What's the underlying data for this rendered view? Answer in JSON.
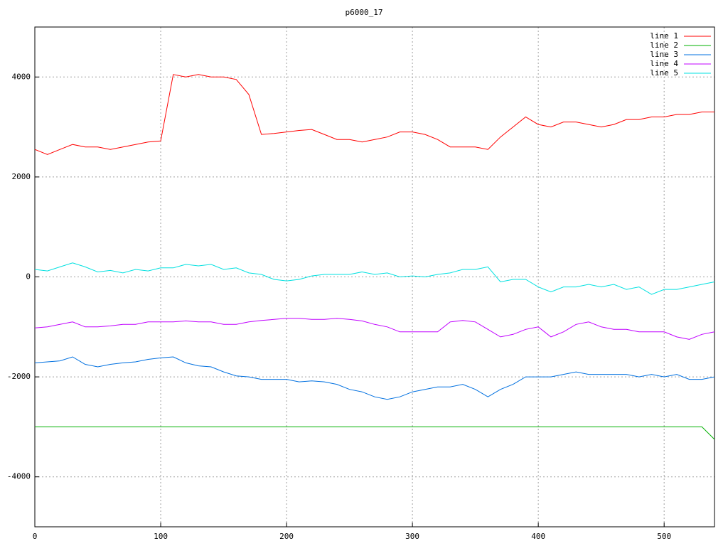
{
  "chart_data": {
    "type": "line",
    "title": "p6000_17",
    "x": [
      0,
      10,
      20,
      30,
      40,
      50,
      60,
      70,
      80,
      90,
      100,
      110,
      120,
      130,
      140,
      150,
      160,
      170,
      180,
      190,
      200,
      210,
      220,
      230,
      240,
      250,
      260,
      270,
      280,
      290,
      300,
      310,
      320,
      330,
      340,
      350,
      360,
      370,
      380,
      390,
      400,
      410,
      420,
      430,
      440,
      450,
      460,
      470,
      480,
      490,
      500,
      510,
      520,
      530,
      540
    ],
    "series": [
      {
        "name": "line 1",
        "color": "#ff0000",
        "values": [
          2550,
          2450,
          2550,
          2650,
          2600,
          2600,
          2550,
          2600,
          2650,
          2700,
          2720,
          4050,
          4000,
          4050,
          4000,
          4000,
          3950,
          3650,
          2850,
          2870,
          2900,
          2930,
          2950,
          2850,
          2750,
          2750,
          2700,
          2750,
          2800,
          2900,
          2900,
          2850,
          2750,
          2600,
          2600,
          2600,
          2550,
          2800,
          3000,
          3200,
          3050,
          3000,
          3100,
          3100,
          3050,
          3000,
          3050,
          3150,
          3150,
          3200,
          3200,
          3250,
          3250,
          3300,
          3300
        ]
      },
      {
        "name": "line 2",
        "color": "#00b000",
        "values": [
          -3000,
          -3000,
          -3000,
          -3000,
          -3000,
          -3000,
          -3000,
          -3000,
          -3000,
          -3000,
          -3000,
          -3000,
          -3000,
          -3000,
          -3000,
          -3000,
          -3000,
          -3000,
          -3000,
          -3000,
          -3000,
          -3000,
          -3000,
          -3000,
          -3000,
          -3000,
          -3000,
          -3000,
          -3000,
          -3000,
          -3000,
          -3000,
          -3000,
          -3000,
          -3000,
          -3000,
          -3000,
          -3000,
          -3000,
          -3000,
          -3000,
          -3000,
          -3000,
          -3000,
          -3000,
          -3000,
          -3000,
          -3000,
          -3000,
          -3000,
          -3000,
          -3000,
          -3000,
          -3000,
          -3250
        ]
      },
      {
        "name": "line 3",
        "color": "#0070e0",
        "values": [
          -1720,
          -1700,
          -1680,
          -1600,
          -1750,
          -1800,
          -1750,
          -1720,
          -1700,
          -1650,
          -1620,
          -1600,
          -1720,
          -1780,
          -1800,
          -1900,
          -1980,
          -2000,
          -2050,
          -2050,
          -2050,
          -2100,
          -2080,
          -2100,
          -2150,
          -2250,
          -2300,
          -2400,
          -2450,
          -2400,
          -2300,
          -2250,
          -2200,
          -2200,
          -2150,
          -2250,
          -2400,
          -2250,
          -2150,
          -2000,
          -2000,
          -2000,
          -1950,
          -1900,
          -1950,
          -1950,
          -1950,
          -1950,
          -2000,
          -1950,
          -2000,
          -1950,
          -2050,
          -2050,
          -2000
        ]
      },
      {
        "name": "line 4",
        "color": "#c000ff",
        "values": [
          -1020,
          -1000,
          -950,
          -900,
          -1000,
          -1000,
          -980,
          -950,
          -950,
          -900,
          -900,
          -900,
          -880,
          -900,
          -900,
          -950,
          -950,
          -900,
          -870,
          -850,
          -830,
          -830,
          -850,
          -850,
          -830,
          -850,
          -880,
          -950,
          -1000,
          -1100,
          -1100,
          -1100,
          -1100,
          -900,
          -870,
          -900,
          -1050,
          -1200,
          -1150,
          -1050,
          -1000,
          -1200,
          -1100,
          -950,
          -900,
          -1000,
          -1050,
          -1050,
          -1100,
          -1100,
          -1100,
          -1200,
          -1250,
          -1150,
          -1100
        ]
      },
      {
        "name": "line 5",
        "color": "#00e0e0",
        "values": [
          150,
          120,
          200,
          280,
          200,
          100,
          130,
          80,
          150,
          120,
          180,
          180,
          250,
          220,
          250,
          150,
          180,
          80,
          50,
          -50,
          -80,
          -50,
          20,
          50,
          50,
          50,
          100,
          50,
          80,
          0,
          20,
          0,
          50,
          80,
          150,
          150,
          200,
          -100,
          -50,
          -50,
          -200,
          -300,
          -200,
          -200,
          -150,
          -200,
          -150,
          -250,
          -200,
          -350,
          -250,
          -250,
          -200,
          -150,
          -100
        ]
      }
    ],
    "xlim": [
      0,
      540
    ],
    "xticks": [
      0,
      100,
      200,
      300,
      400,
      500
    ],
    "ylim": [
      -5000,
      5000
    ],
    "yticks": [
      -4000,
      -2000,
      0,
      2000,
      4000
    ],
    "grid": true,
    "legend": "top right"
  }
}
